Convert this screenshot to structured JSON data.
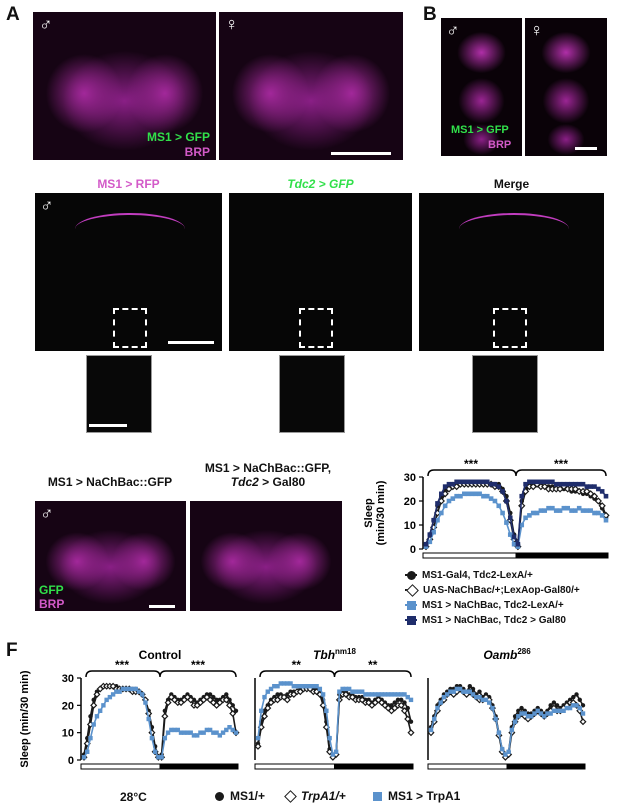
{
  "panels": {
    "A": {
      "letter": "A",
      "male_symbol": "♂",
      "female_symbol": "♀",
      "label_green": "MS1 > GFP",
      "label_magenta": "BRP"
    },
    "B": {
      "letter": "B",
      "male_symbol": "♂",
      "female_symbol": "♀",
      "label_green": "MS1 > GFP",
      "label_magenta": "BRP"
    },
    "C": {
      "male_symbol": "♂",
      "titles": [
        "MS1 > RFP",
        "Tdc2 > GFP",
        "Merge"
      ]
    },
    "D": {
      "male_symbol": "♂",
      "title_left": "MS1 > NaChBac::GFP",
      "title_right_line1": "MS1 > NaChBac::GFP,",
      "title_right_line2": "Tdc2 > Gal80",
      "label_green": "GFP",
      "label_magenta": "BRP"
    },
    "F": {
      "letter": "F"
    }
  },
  "colors": {
    "black_series": "#1a1a1a",
    "blue_series": "#5b92cc",
    "navy_series": "#1f2d6b",
    "gfp_green": "#31e04a",
    "brp_magenta": "#d35ac8"
  },
  "chart_data": [
    {
      "id": "E",
      "type": "line",
      "ylabel": "Sleep\n(min/30 min)",
      "ylim": [
        0,
        30
      ],
      "yticks": [
        0,
        10,
        20,
        30
      ],
      "x_bins": 48,
      "significance": [
        "***",
        "***"
      ],
      "series": [
        {
          "name": "MS1-Gal4, Tdc2-LexA/+",
          "marker": "circle",
          "color": "#1a1a1a",
          "values": [
            2,
            6,
            12,
            18,
            22,
            25,
            26,
            27,
            27,
            27,
            27,
            27,
            27,
            27,
            27,
            28,
            28,
            27,
            27,
            27,
            25,
            22,
            15,
            6,
            2,
            20,
            25,
            27,
            27,
            27,
            27,
            26,
            26,
            26,
            25,
            25,
            25,
            25,
            24,
            24,
            24,
            23,
            23,
            22,
            21,
            20,
            17,
            13
          ]
        },
        {
          "name": "UAS-NaChBac/+;LexAop-Gal80/+",
          "marker": "diamond-open",
          "color": "#1a1a1a",
          "values": [
            1,
            4,
            9,
            15,
            20,
            23,
            25,
            26,
            26,
            27,
            27,
            27,
            27,
            27,
            27,
            27,
            27,
            27,
            26,
            26,
            24,
            20,
            12,
            4,
            1,
            18,
            24,
            26,
            26,
            27,
            26,
            26,
            25,
            25,
            25,
            25,
            26,
            25,
            25,
            25,
            24,
            24,
            24,
            23,
            22,
            20,
            18,
            14
          ]
        },
        {
          "name": "MS1 > NaChBac, Tdc2-LexA/+",
          "marker": "square",
          "color": "#5b92cc",
          "values": [
            1,
            3,
            7,
            12,
            15,
            18,
            20,
            21,
            22,
            22,
            23,
            23,
            23,
            23,
            23,
            22,
            22,
            21,
            20,
            18,
            15,
            11,
            6,
            2,
            1,
            10,
            13,
            14,
            15,
            15,
            16,
            16,
            17,
            17,
            16,
            16,
            17,
            17,
            16,
            16,
            17,
            16,
            16,
            16,
            15,
            15,
            14,
            12
          ]
        },
        {
          "name": "MS1 > NaChBac, Tdc2 > Gal80",
          "marker": "square",
          "color": "#1f2d6b",
          "values": [
            2,
            6,
            12,
            19,
            23,
            26,
            27,
            27,
            28,
            28,
            28,
            28,
            28,
            28,
            28,
            28,
            28,
            27,
            27,
            26,
            24,
            20,
            13,
            5,
            2,
            22,
            27,
            28,
            28,
            28,
            28,
            28,
            28,
            28,
            27,
            27,
            27,
            27,
            27,
            27,
            27,
            27,
            26,
            26,
            26,
            25,
            24,
            22
          ]
        }
      ]
    },
    {
      "id": "F-Control",
      "type": "line",
      "title": "Control",
      "ylabel": "Sleep (min/30 min)",
      "ylim": [
        0,
        30
      ],
      "yticks": [
        0,
        10,
        20,
        30
      ],
      "x_bins": 48,
      "significance": [
        "***",
        "***"
      ],
      "series": [
        {
          "name": "MS1/+",
          "marker": "circle",
          "color": "#1a1a1a",
          "values": [
            2,
            8,
            16,
            22,
            25,
            26,
            27,
            27,
            27,
            27,
            27,
            26,
            26,
            26,
            26,
            26,
            26,
            25,
            24,
            22,
            18,
            12,
            5,
            1,
            2,
            18,
            22,
            24,
            23,
            22,
            22,
            23,
            24,
            23,
            22,
            21,
            22,
            23,
            24,
            24,
            23,
            22,
            22,
            23,
            24,
            22,
            20,
            18
          ]
        },
        {
          "name": "TrpA1/+",
          "marker": "diamond-open",
          "color": "#1a1a1a",
          "values": [
            1,
            6,
            13,
            20,
            24,
            26,
            27,
            27,
            27,
            27,
            26,
            26,
            26,
            26,
            26,
            25,
            25,
            25,
            24,
            22,
            17,
            10,
            3,
            1,
            1,
            16,
            21,
            23,
            22,
            21,
            21,
            22,
            23,
            22,
            20,
            20,
            21,
            22,
            23,
            22,
            21,
            20,
            21,
            22,
            22,
            20,
            17,
            10
          ]
        },
        {
          "name": "MS1 > TrpA1",
          "marker": "square",
          "color": "#5b92cc",
          "values": [
            1,
            3,
            8,
            13,
            16,
            18,
            20,
            22,
            23,
            24,
            25,
            25,
            26,
            26,
            26,
            26,
            26,
            25,
            24,
            21,
            15,
            8,
            3,
            1,
            1,
            8,
            10,
            11,
            11,
            11,
            10,
            10,
            10,
            10,
            9,
            9,
            10,
            10,
            11,
            11,
            10,
            10,
            9,
            10,
            11,
            12,
            11,
            10
          ]
        }
      ]
    },
    {
      "id": "F-Tbh",
      "type": "line",
      "title": "Tbh^nm18",
      "ylim": [
        0,
        30
      ],
      "yticks": [
        0,
        10,
        20,
        30
      ],
      "x_bins": 48,
      "significance": [
        "**",
        "**"
      ],
      "series": [
        {
          "name": "MS1/+",
          "marker": "circle",
          "color": "#1a1a1a",
          "values": [
            6,
            14,
            18,
            20,
            22,
            23,
            24,
            24,
            23,
            24,
            25,
            25,
            25,
            26,
            26,
            26,
            26,
            26,
            26,
            25,
            22,
            14,
            4,
            1,
            2,
            24,
            25,
            25,
            24,
            24,
            23,
            23,
            23,
            22,
            22,
            21,
            22,
            23,
            22,
            21,
            20,
            20,
            21,
            22,
            22,
            21,
            19,
            14
          ]
        },
        {
          "name": "TrpA1/+",
          "marker": "diamond-open",
          "color": "#1a1a1a",
          "values": [
            5,
            12,
            16,
            19,
            21,
            22,
            22,
            23,
            23,
            22,
            24,
            24,
            25,
            25,
            26,
            26,
            26,
            25,
            25,
            24,
            20,
            12,
            3,
            1,
            2,
            22,
            24,
            24,
            23,
            23,
            22,
            22,
            22,
            21,
            21,
            20,
            21,
            22,
            21,
            20,
            19,
            18,
            19,
            20,
            20,
            18,
            15,
            10
          ]
        },
        {
          "name": "MS1 > TrpA1",
          "marker": "square",
          "color": "#5b92cc",
          "values": [
            8,
            18,
            23,
            25,
            26,
            27,
            27,
            28,
            28,
            28,
            28,
            27,
            27,
            27,
            27,
            27,
            27,
            27,
            27,
            26,
            24,
            18,
            8,
            2,
            3,
            25,
            26,
            26,
            26,
            25,
            25,
            25,
            25,
            24,
            24,
            24,
            24,
            24,
            24,
            24,
            24,
            24,
            24,
            24,
            24,
            24,
            23,
            22
          ]
        }
      ]
    },
    {
      "id": "F-Oamb",
      "type": "line",
      "title": "Oamb^286",
      "ylim": [
        0,
        30
      ],
      "yticks": [
        0,
        10,
        20,
        30
      ],
      "x_bins": 48,
      "significance": [],
      "series": [
        {
          "name": "MS1/+",
          "marker": "circle",
          "color": "#1a1a1a",
          "values": [
            12,
            16,
            20,
            22,
            24,
            25,
            26,
            26,
            27,
            27,
            26,
            25,
            27,
            26,
            24,
            25,
            23,
            24,
            23,
            20,
            16,
            10,
            4,
            2,
            3,
            12,
            16,
            18,
            19,
            18,
            17,
            17,
            18,
            19,
            18,
            17,
            18,
            20,
            21,
            20,
            19,
            20,
            21,
            22,
            23,
            24,
            22,
            20
          ]
        },
        {
          "name": "TrpA1/+",
          "marker": "diamond-open",
          "color": "#1a1a1a",
          "values": [
            10,
            14,
            18,
            21,
            22,
            24,
            25,
            24,
            25,
            26,
            25,
            24,
            25,
            24,
            23,
            22,
            22,
            23,
            22,
            19,
            15,
            9,
            3,
            1,
            2,
            10,
            14,
            16,
            17,
            16,
            15,
            16,
            17,
            18,
            17,
            16,
            17,
            18,
            19,
            18,
            18,
            19,
            20,
            21,
            21,
            20,
            18,
            14
          ]
        },
        {
          "name": "MS1 > TrpA1",
          "marker": "square",
          "color": "#5b92cc",
          "values": [
            11,
            15,
            19,
            21,
            23,
            24,
            25,
            25,
            26,
            26,
            25,
            25,
            25,
            24,
            23,
            23,
            22,
            22,
            21,
            19,
            15,
            10,
            4,
            2,
            3,
            11,
            14,
            16,
            17,
            17,
            16,
            16,
            17,
            18,
            17,
            16,
            17,
            17,
            18,
            18,
            18,
            18,
            19,
            19,
            20,
            20,
            19,
            17
          ]
        }
      ]
    }
  ],
  "legend_E": [
    {
      "label": "MS1-Gal4, Tdc2-LexA/+",
      "marker": "circle",
      "color": "#1a1a1a"
    },
    {
      "label": "UAS-NaChBac/+;LexAop-Gal80/+",
      "marker": "diamond-open",
      "color": "#1a1a1a"
    },
    {
      "label": "MS1 > NaChBac, Tdc2-LexA/+",
      "marker": "square",
      "color": "#5b92cc"
    },
    {
      "label": "MS1 > NaChBac, Tdc2 > Gal80",
      "marker": "square",
      "color": "#1f2d6b"
    }
  ],
  "legend_F": {
    "temperature": "28°C",
    "items": [
      {
        "label": "MS1/+",
        "marker": "circle",
        "color": "#1a1a1a"
      },
      {
        "label": "TrpA1/+",
        "marker": "diamond-open",
        "color": "#1a1a1a"
      },
      {
        "label": "MS1 > TrpA1",
        "marker": "square",
        "color": "#5b92cc"
      }
    ]
  }
}
